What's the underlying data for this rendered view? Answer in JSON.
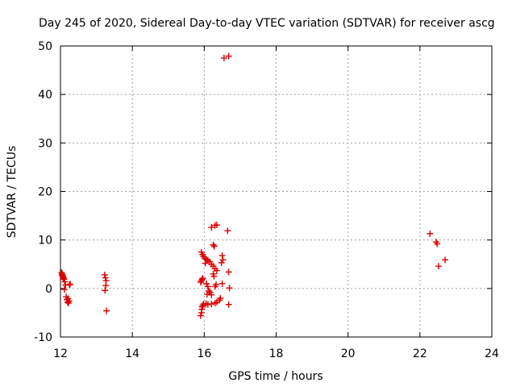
{
  "chart_data": {
    "type": "scatter",
    "title": "Day 245 of 2020, Sidereal Day-to-day VTEC variation (SDTVAR) for receiver ascg",
    "xlabel": "GPS time / hours",
    "ylabel": "SDTVAR / TECUs",
    "xlim": [
      12,
      24
    ],
    "ylim": [
      -10,
      50
    ],
    "xticks": [
      "12",
      "14",
      "16",
      "18",
      "20",
      "22",
      "24"
    ],
    "yticks": [
      "-10",
      "0",
      "10",
      "20",
      "30",
      "40",
      "50"
    ],
    "grid": true,
    "marker": "plus",
    "color": "#dd0000",
    "series": [
      {
        "name": "SDTVAR",
        "points": [
          [
            12.03,
            3.3
          ],
          [
            12.05,
            3.0
          ],
          [
            12.07,
            2.6
          ],
          [
            12.08,
            2.2
          ],
          [
            12.1,
            1.9
          ],
          [
            12.04,
            2.8
          ],
          [
            12.06,
            2.4
          ],
          [
            12.09,
            2.0
          ],
          [
            12.12,
            1.4
          ],
          [
            12.14,
            0.7
          ],
          [
            12.11,
            -0.2
          ],
          [
            12.16,
            -1.7
          ],
          [
            12.18,
            -2.3
          ],
          [
            12.2,
            -2.8
          ],
          [
            12.22,
            -3.0
          ],
          [
            12.24,
            -2.6
          ],
          [
            12.21,
            -2.1
          ],
          [
            12.25,
            0.8
          ],
          [
            12.27,
            0.9
          ],
          [
            13.23,
            2.8
          ],
          [
            13.25,
            2.2
          ],
          [
            13.27,
            1.6
          ],
          [
            13.26,
            0.6
          ],
          [
            13.24,
            -0.4
          ],
          [
            13.28,
            -4.6
          ],
          [
            15.9,
            -5.6
          ],
          [
            15.92,
            -5.0
          ],
          [
            15.93,
            -4.3
          ],
          [
            15.94,
            -3.8
          ],
          [
            15.96,
            -3.5
          ],
          [
            15.98,
            -3.2
          ],
          [
            15.9,
            1.3
          ],
          [
            15.92,
            1.6
          ],
          [
            15.94,
            1.9
          ],
          [
            15.96,
            2.1
          ],
          [
            15.92,
            7.5
          ],
          [
            15.95,
            7.0
          ],
          [
            15.98,
            6.6
          ],
          [
            16.02,
            6.2
          ],
          [
            16.06,
            6.0
          ],
          [
            16.1,
            5.8
          ],
          [
            16.15,
            5.5
          ],
          [
            16.2,
            5.0
          ],
          [
            16.25,
            4.6
          ],
          [
            16.3,
            4.1
          ],
          [
            16.35,
            3.7
          ],
          [
            16.03,
            5.2
          ],
          [
            16.06,
            1.0
          ],
          [
            16.1,
            0.4
          ],
          [
            16.13,
            -0.5
          ],
          [
            16.08,
            -1.2
          ],
          [
            16.16,
            -0.8
          ],
          [
            16.2,
            -1.3
          ],
          [
            16.25,
            3.0
          ],
          [
            16.27,
            2.5
          ],
          [
            16.3,
            0.4
          ],
          [
            16.33,
            0.8
          ],
          [
            16.05,
            -3.1
          ],
          [
            16.1,
            -3.3
          ],
          [
            16.2,
            -3.2
          ],
          [
            16.3,
            -3.0
          ],
          [
            16.35,
            -2.8
          ],
          [
            16.42,
            -2.4
          ],
          [
            16.45,
            -2.0
          ],
          [
            16.2,
            12.6
          ],
          [
            16.3,
            13.0
          ],
          [
            16.35,
            13.1
          ],
          [
            16.25,
            9.0
          ],
          [
            16.28,
            8.7
          ],
          [
            16.5,
            6.8
          ],
          [
            16.52,
            5.9
          ],
          [
            16.48,
            5.3
          ],
          [
            16.5,
            1.0
          ],
          [
            16.55,
            47.5
          ],
          [
            16.68,
            47.9
          ],
          [
            16.65,
            11.9
          ],
          [
            16.68,
            3.4
          ],
          [
            16.7,
            0.1
          ],
          [
            16.68,
            -3.3
          ],
          [
            22.28,
            11.3
          ],
          [
            22.45,
            9.6
          ],
          [
            22.48,
            9.2
          ],
          [
            22.52,
            4.6
          ],
          [
            22.7,
            5.9
          ]
        ]
      }
    ]
  }
}
